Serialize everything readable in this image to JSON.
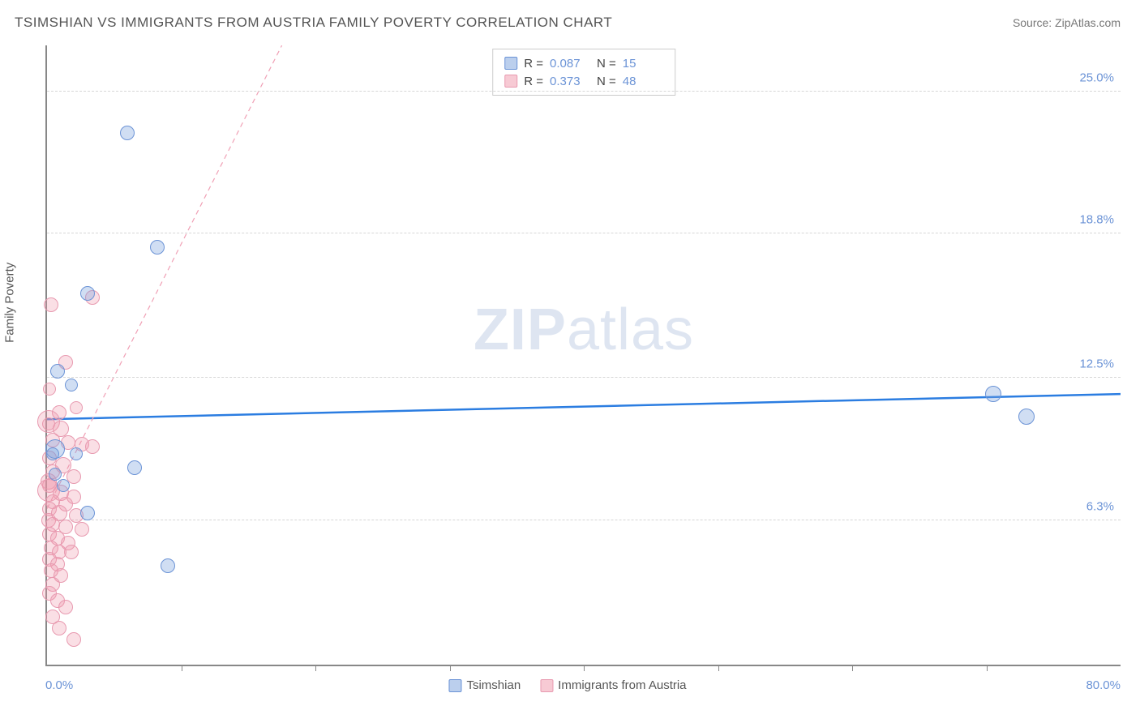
{
  "header": {
    "title": "TSIMSHIAN VS IMMIGRANTS FROM AUSTRIA FAMILY POVERTY CORRELATION CHART",
    "source_label": "Source: ",
    "source_value": "ZipAtlas.com"
  },
  "ylabel": "Family Poverty",
  "axis": {
    "xmin": 0.0,
    "xmax": 80.0,
    "ymin": 0.0,
    "ymax": 27.0,
    "xmin_label": "0.0%",
    "xmax_label": "80.0%",
    "ytick_values": [
      6.3,
      12.5,
      18.8,
      25.0
    ],
    "ytick_labels": [
      "6.3%",
      "12.5%",
      "18.8%",
      "25.0%"
    ],
    "xtick_positions": [
      10,
      20,
      30,
      40,
      50,
      60,
      70
    ]
  },
  "colors": {
    "blue_stroke": "#6b93d6",
    "blue_fill": "rgba(120,160,220,0.35)",
    "pink_stroke": "#e89ab0",
    "pink_fill": "rgba(240,150,170,0.3)",
    "blue_line": "#2b7de1",
    "pink_line": "#f0a0b5",
    "grid": "#d6d6d6",
    "axis_color": "#888888",
    "tick_text": "#6b93d6",
    "title_text": "#555555",
    "watermark": "#cdd8ea"
  },
  "legend_top": {
    "rows": [
      {
        "sw": "blue",
        "r_label": "R =",
        "r_value": "0.087",
        "n_label": "N =",
        "n_value": "15"
      },
      {
        "sw": "pink",
        "r_label": "R =",
        "r_value": "0.373",
        "n_label": "N =",
        "n_value": "48"
      }
    ]
  },
  "legend_bottom": {
    "items": [
      {
        "sw": "blue",
        "label": "Tsimshian"
      },
      {
        "sw": "pink",
        "label": "Immigrants from Austria"
      }
    ]
  },
  "watermark": {
    "bold": "ZIP",
    "light": "atlas"
  },
  "series_blue": {
    "trend": {
      "y_at_xmin": 10.7,
      "y_at_xmax": 11.8,
      "dashed": false,
      "width": 2.5
    },
    "points": [
      {
        "x": 6.0,
        "y": 23.2,
        "r": 9
      },
      {
        "x": 8.2,
        "y": 18.2,
        "r": 9
      },
      {
        "x": 3.0,
        "y": 16.2,
        "r": 9
      },
      {
        "x": 1.8,
        "y": 12.2,
        "r": 8
      },
      {
        "x": 0.6,
        "y": 9.4,
        "r": 12
      },
      {
        "x": 0.4,
        "y": 9.2,
        "r": 8
      },
      {
        "x": 6.5,
        "y": 8.6,
        "r": 9
      },
      {
        "x": 0.6,
        "y": 8.3,
        "r": 8
      },
      {
        "x": 2.2,
        "y": 9.2,
        "r": 8
      },
      {
        "x": 3.0,
        "y": 6.6,
        "r": 9
      },
      {
        "x": 0.8,
        "y": 12.8,
        "r": 9
      },
      {
        "x": 9.0,
        "y": 4.3,
        "r": 9
      },
      {
        "x": 70.5,
        "y": 11.8,
        "r": 10
      },
      {
        "x": 73.0,
        "y": 10.8,
        "r": 10
      },
      {
        "x": 1.2,
        "y": 7.8,
        "r": 8
      }
    ]
  },
  "series_pink": {
    "trend": {
      "y_at_xmin": 6.8,
      "slope_to_y": 27.0,
      "x_at_ymax": 17.5,
      "dashed": true,
      "width": 1.2
    },
    "points": [
      {
        "x": 0.3,
        "y": 15.7,
        "r": 9
      },
      {
        "x": 3.4,
        "y": 16.0,
        "r": 9
      },
      {
        "x": 1.4,
        "y": 13.2,
        "r": 9
      },
      {
        "x": 0.2,
        "y": 12.0,
        "r": 8
      },
      {
        "x": 0.9,
        "y": 11.0,
        "r": 9
      },
      {
        "x": 2.2,
        "y": 11.2,
        "r": 8
      },
      {
        "x": 0.1,
        "y": 10.5,
        "r": 8
      },
      {
        "x": 0.1,
        "y": 10.6,
        "r": 14
      },
      {
        "x": 1.0,
        "y": 10.3,
        "r": 10
      },
      {
        "x": 0.4,
        "y": 9.8,
        "r": 9
      },
      {
        "x": 1.6,
        "y": 9.7,
        "r": 9
      },
      {
        "x": 2.6,
        "y": 9.6,
        "r": 9
      },
      {
        "x": 3.4,
        "y": 9.5,
        "r": 9
      },
      {
        "x": 0.2,
        "y": 9.0,
        "r": 9
      },
      {
        "x": 1.2,
        "y": 8.7,
        "r": 10
      },
      {
        "x": 0.4,
        "y": 8.4,
        "r": 9
      },
      {
        "x": 2.0,
        "y": 8.2,
        "r": 9
      },
      {
        "x": 0.1,
        "y": 8.0,
        "r": 10
      },
      {
        "x": 0.2,
        "y": 7.8,
        "r": 9
      },
      {
        "x": 0.1,
        "y": 7.6,
        "r": 14
      },
      {
        "x": 1.0,
        "y": 7.5,
        "r": 10
      },
      {
        "x": 2.0,
        "y": 7.3,
        "r": 9
      },
      {
        "x": 0.4,
        "y": 7.1,
        "r": 9
      },
      {
        "x": 1.4,
        "y": 7.0,
        "r": 9
      },
      {
        "x": 0.2,
        "y": 6.8,
        "r": 9
      },
      {
        "x": 0.9,
        "y": 6.6,
        "r": 10
      },
      {
        "x": 2.2,
        "y": 6.5,
        "r": 9
      },
      {
        "x": 0.1,
        "y": 6.3,
        "r": 9
      },
      {
        "x": 0.4,
        "y": 6.1,
        "r": 9
      },
      {
        "x": 1.4,
        "y": 6.0,
        "r": 9
      },
      {
        "x": 2.6,
        "y": 5.9,
        "r": 9
      },
      {
        "x": 0.2,
        "y": 5.7,
        "r": 9
      },
      {
        "x": 0.8,
        "y": 5.5,
        "r": 9
      },
      {
        "x": 1.6,
        "y": 5.3,
        "r": 9
      },
      {
        "x": 0.3,
        "y": 5.1,
        "r": 9
      },
      {
        "x": 0.9,
        "y": 4.9,
        "r": 9
      },
      {
        "x": 1.8,
        "y": 4.9,
        "r": 9
      },
      {
        "x": 0.2,
        "y": 4.6,
        "r": 9
      },
      {
        "x": 0.8,
        "y": 4.4,
        "r": 9
      },
      {
        "x": 0.3,
        "y": 4.1,
        "r": 9
      },
      {
        "x": 1.0,
        "y": 3.9,
        "r": 9
      },
      {
        "x": 0.4,
        "y": 3.5,
        "r": 9
      },
      {
        "x": 0.2,
        "y": 3.1,
        "r": 9
      },
      {
        "x": 0.8,
        "y": 2.8,
        "r": 9
      },
      {
        "x": 1.4,
        "y": 2.5,
        "r": 9
      },
      {
        "x": 0.4,
        "y": 2.1,
        "r": 9
      },
      {
        "x": 0.9,
        "y": 1.6,
        "r": 9
      },
      {
        "x": 2.0,
        "y": 1.1,
        "r": 9
      }
    ]
  }
}
